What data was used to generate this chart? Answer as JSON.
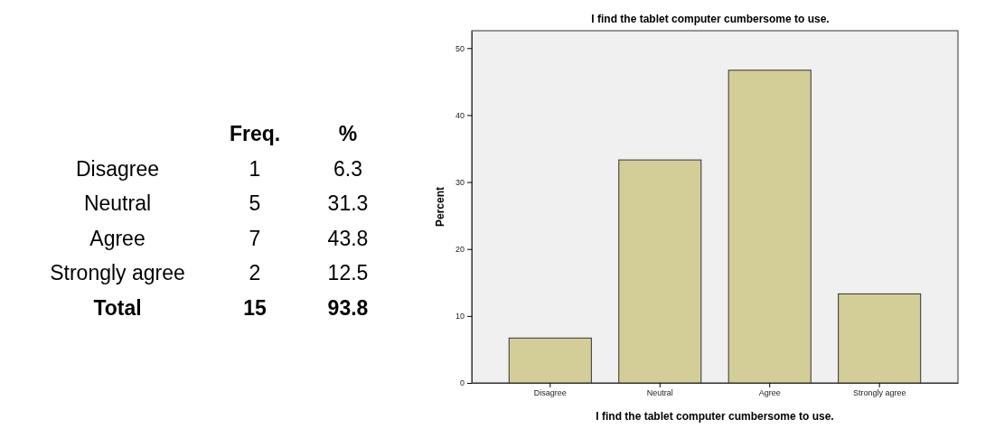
{
  "chart_data": [
    {
      "type": "other",
      "categories": [
        "Disagree",
        "Neutral",
        "Agree",
        "Strongly agree",
        "Total"
      ],
      "series": [
        {
          "name": "Freq.",
          "values": [
            1,
            5,
            7,
            2,
            15
          ]
        },
        {
          "name": "%",
          "values": [
            6.3,
            31.3,
            43.8,
            12.5,
            93.8
          ]
        }
      ],
      "data_labels": true
    },
    {
      "type": "bar",
      "title": "I find the tablet computer cumbersome to use.",
      "xlabel": "I find the tablet computer cumbersome to use.",
      "ylabel": "Percent",
      "categories": [
        "Disagree",
        "Neutral",
        "Agree",
        "Strongly agree"
      ],
      "values": [
        6.7,
        33.3,
        46.7,
        13.3
      ],
      "color": "#d3ce97",
      "ylim": [
        0,
        52.6
      ],
      "yticks": [
        0,
        10,
        20,
        30,
        40,
        50
      ],
      "grid": false
    }
  ]
}
